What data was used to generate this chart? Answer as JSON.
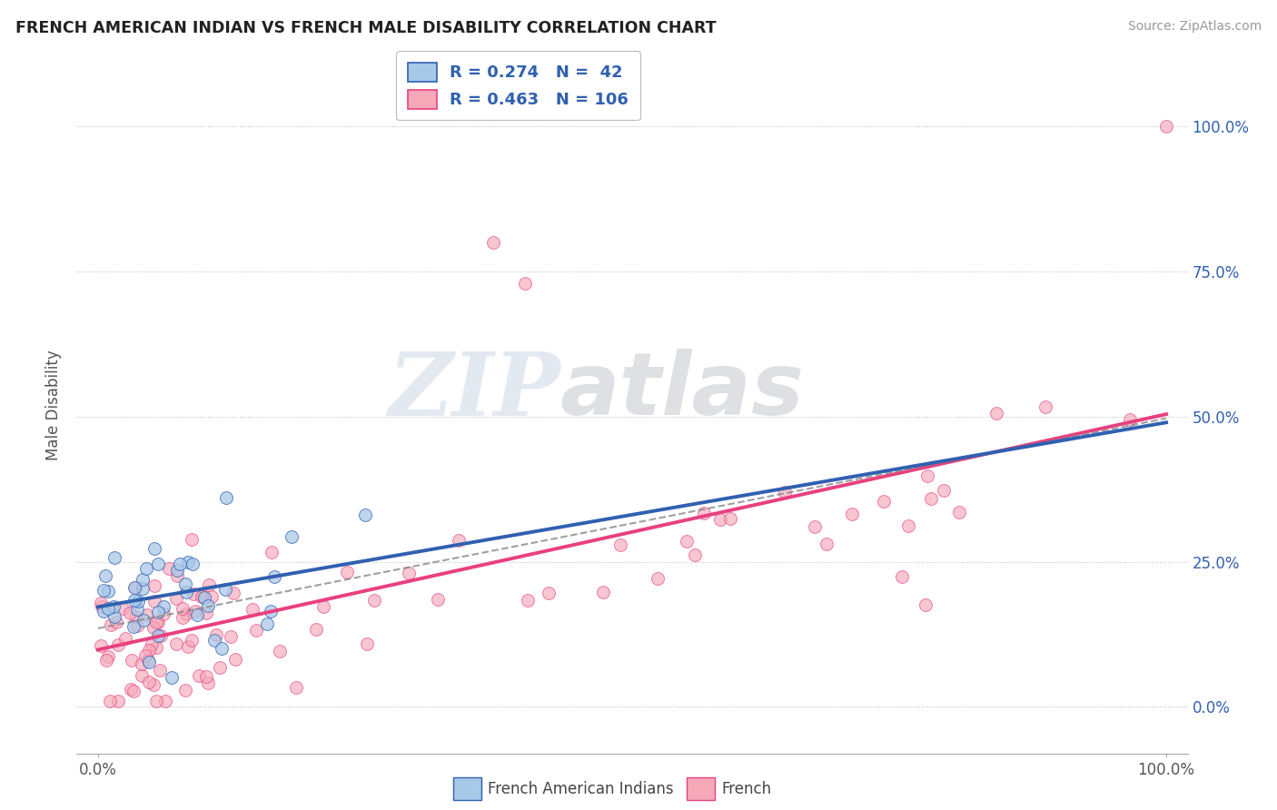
{
  "title": "FRENCH AMERICAN INDIAN VS FRENCH MALE DISABILITY CORRELATION CHART",
  "source": "Source: ZipAtlas.com",
  "ylabel": "Male Disability",
  "color_blue": "#a8c8e8",
  "color_pink": "#f4a8b8",
  "line_color_blue": "#3060b0",
  "line_color_pink": "#e84080",
  "dash_color": "#888888",
  "legend_r1": "R = 0.274",
  "legend_n1": "N =  42",
  "legend_r2": "R = 0.463",
  "legend_n2": "N = 106",
  "watermark_zip": "ZIP",
  "watermark_atlas": "atlas",
  "blue_R": 0.274,
  "pink_R": 0.463,
  "blue_N": 42,
  "pink_N": 106,
  "xlim": [
    -0.02,
    1.02
  ],
  "ylim": [
    -0.08,
    1.12
  ],
  "yticks": [
    0.0,
    0.25,
    0.5,
    0.75,
    1.0
  ],
  "ytick_labels": [
    "0.0%",
    "25.0%",
    "50.0%",
    "75.0%",
    "100.0%"
  ],
  "xticks": [
    0.0,
    1.0
  ],
  "xtick_labels": [
    "0.0%",
    "100.0%"
  ]
}
